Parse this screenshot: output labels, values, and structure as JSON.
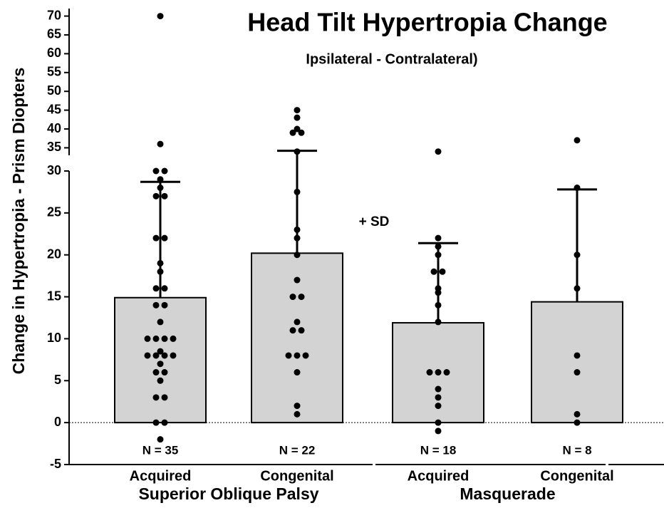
{
  "chart_data": {
    "type": "bar",
    "title": "Head Tilt Hypertropia Change",
    "subtitle": "Ipsilateral - Contralateral)",
    "y_label": "Change in Hypertropia - Prism Diopters",
    "annotation": "+ SD",
    "categories": [
      "Acquired",
      "Congenital",
      "Acquired",
      "Congenital"
    ],
    "groups": [
      "Superior Oblique Palsy",
      "Masquerade"
    ],
    "n_labels": [
      "N = 35",
      "N = 22",
      "N = 18",
      "N = 8"
    ],
    "values": [
      14.9,
      20.2,
      11.9,
      14.4
    ],
    "errors": [
      13.8,
      14.0,
      9.5,
      13.4
    ],
    "color": "#d3d3d3",
    "points": [
      [
        70,
        36,
        30,
        30,
        29,
        28,
        27,
        27,
        22,
        22,
        19,
        18,
        16,
        16,
        14,
        14,
        12,
        10,
        10,
        10,
        10,
        8,
        8,
        8,
        8,
        8.5,
        7,
        6,
        6,
        5,
        3,
        3,
        0,
        0,
        -2
      ],
      [
        45,
        43,
        40,
        39,
        39,
        34,
        27.5,
        23,
        22,
        20,
        17,
        15,
        15,
        12,
        11,
        11,
        8,
        8,
        8,
        6,
        2,
        1
      ],
      [
        34,
        22,
        21,
        20,
        18,
        18,
        16,
        15.5,
        14,
        12,
        6,
        6,
        6,
        4,
        3,
        2,
        0,
        -1
      ],
      [
        37,
        28,
        20,
        16,
        8,
        6,
        1,
        0
      ]
    ],
    "ylim": [
      -5,
      30
    ],
    "yticks": [
      -5,
      0,
      5,
      10,
      15,
      20,
      25,
      30
    ],
    "ylim_break": [
      33,
      72
    ],
    "yticks_break": [
      35,
      40,
      45,
      50,
      55,
      60,
      65,
      70
    ]
  }
}
